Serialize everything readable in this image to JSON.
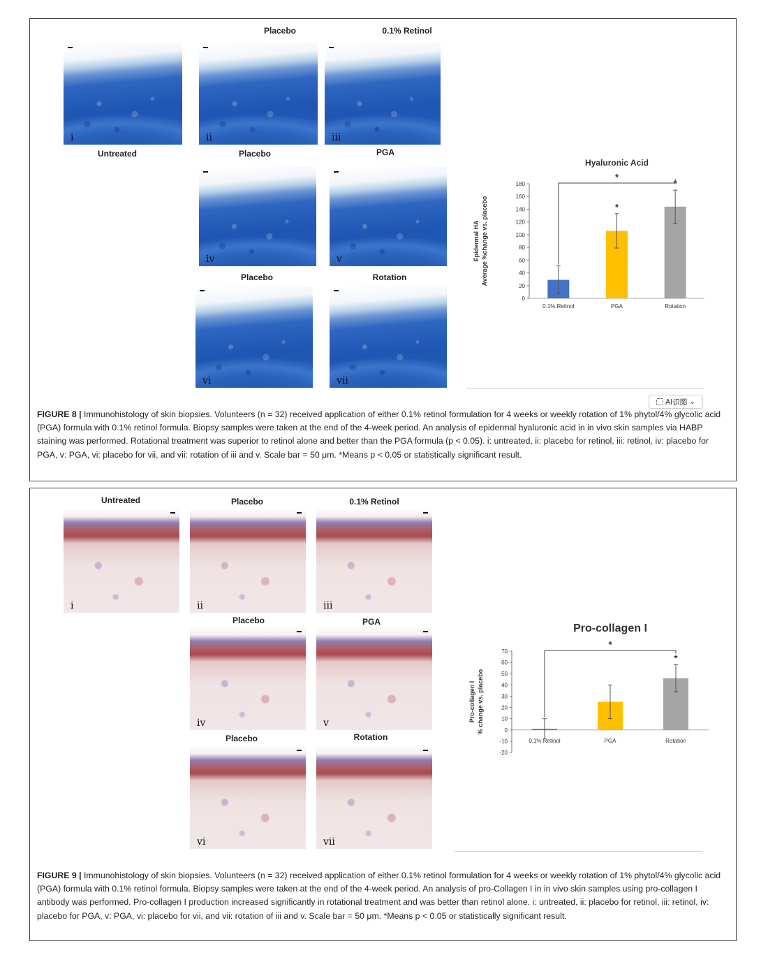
{
  "figure8": {
    "panel_titles": {
      "placebo_top": "Placebo",
      "retinol": "0.1% Retinol",
      "untreated": "Untreated",
      "placebo_mid": "Placebo",
      "pga": "PGA",
      "placebo_bot": "Placebo",
      "rotation": "Rotation"
    },
    "panel_numerals": [
      "i",
      "ii",
      "iii",
      "iv",
      "v",
      "vi",
      "vii"
    ],
    "caption": {
      "label": "FIGURE 8 |",
      "text": " Immunohistology of skin biopsies. Volunteers (n = 32) received application of either 0.1% retinol formulation for 4 weeks or weekly rotation of 1% phytol/4% glycolic acid (PGA) formula with 0.1% retinol formula. Biopsy samples were taken at the end of the 4-week period. An analysis of epidermal hyaluronic acid in in vivo skin samples via HABP staining was performed. Rotational treatment was superior to retinol alone and better than the PGA formula (p < 0.05). i: untreated, ii: placebo for retinol, iii: retinol, iv: placebo for PGA, v: PGA, vi: placebo for vii, and vii: rotation of iii and v. Scale bar = 50 μm. *Means p < 0.05 or statistically significant result."
    },
    "ai_button": {
      "label": "AI识图",
      "icon": "scan-icon",
      "chevron": "⌄"
    },
    "chart_data": {
      "type": "bar",
      "title": "Hyaluronic Acid",
      "ylabel_line1": "Epidermal HA",
      "ylabel_line2": "Average %change vs. placebo",
      "categories": [
        "0.1% Retinol",
        "PGA",
        "Rotation"
      ],
      "values": [
        29,
        106,
        144
      ],
      "errors": [
        22,
        27,
        26
      ],
      "colors": [
        "#4472c4",
        "#ffc000",
        "#a5a5a5"
      ],
      "ylim": [
        0,
        180
      ],
      "yticks": [
        0,
        20,
        40,
        60,
        80,
        100,
        120,
        140,
        160,
        180
      ],
      "significance": [
        "",
        "*",
        "*"
      ],
      "bracket": {
        "from": "0.1% Retinol",
        "to": "Rotation",
        "label": "*"
      },
      "grid": false
    }
  },
  "figure9": {
    "panel_titles": {
      "untreated": "Untreated",
      "placebo_top": "Placebo",
      "retinol": "0.1% Retinol",
      "placebo_mid": "Placebo",
      "pga": "PGA",
      "placebo_bot": "Placebo",
      "rotation": "Rotation"
    },
    "panel_numerals": [
      "i",
      "ii",
      "iii",
      "iv",
      "v",
      "vi",
      "vii"
    ],
    "caption": {
      "label": "FIGURE 9 |",
      "text": " Immunohistology of skin biopsies. Volunteers (n = 32) received application of either 0.1% retinol formulation for 4 weeks or weekly rotation of 1% phytol/4% glycolic acid (PGA) formula with 0.1% retinol formula. Biopsy samples were taken at the end of the 4-week period. An analysis of pro-Collagen I in in vivo skin samples using pro-collagen I antibody was performed. Pro-collagen I production increased significantly in rotational treatment and was better than retinol alone. i: untreated, ii: placebo for retinol, iii: retinol, iv: placebo for PGA, v: PGA, vi: placebo for vii, and vii: rotation of iii and v. Scale bar = 50 μm. *Means p < 0.05 or statistically significant result."
    },
    "chart_data": {
      "type": "bar",
      "title": "Pro-collagen I",
      "ylabel_line1": "Pro-collagen I",
      "ylabel_line2": "% change vs. placebo",
      "categories": [
        "0.1% Retinol",
        "PGA",
        "Rotation"
      ],
      "values": [
        1,
        25,
        46
      ],
      "errors": [
        9,
        15,
        12
      ],
      "colors": [
        "#4472c4",
        "#ffc000",
        "#a5a5a5"
      ],
      "ylim": [
        -20,
        70
      ],
      "yticks": [
        -20,
        -10,
        0,
        10,
        20,
        30,
        40,
        50,
        60,
        70
      ],
      "significance": [
        "",
        "",
        "*"
      ],
      "bracket": {
        "from": "0.1% Retinol",
        "to": "Rotation",
        "label": "*"
      },
      "grid": false
    }
  }
}
